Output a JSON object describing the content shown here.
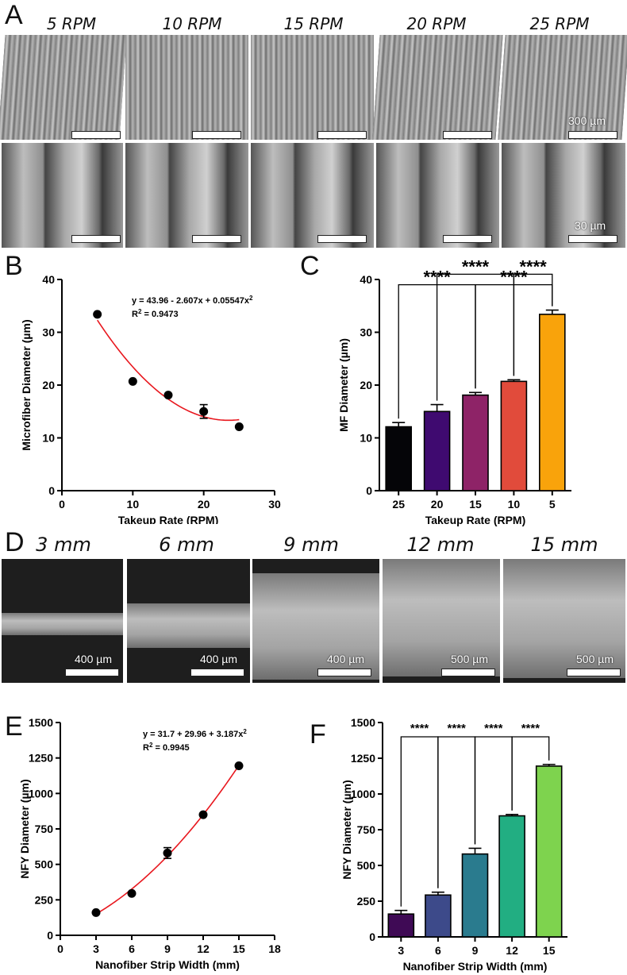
{
  "panel_letters": {
    "a": "A",
    "b": "B",
    "c": "C",
    "d": "D",
    "e": "E",
    "f": "F"
  },
  "panel_a": {
    "rpm_labels": [
      "5 RPM",
      "10 RPM",
      "15 RPM",
      "20 RPM",
      "25 RPM"
    ],
    "scale_top": "300 µm",
    "scale_bottom": "30 µm"
  },
  "panel_d": {
    "width_labels": [
      "3 mm",
      "6 mm",
      "9 mm",
      "12 mm",
      "15 mm"
    ],
    "scale_labels": [
      "400 µm",
      "400 µm",
      "400 µm",
      "500 µm",
      "500 µm"
    ]
  },
  "chart_data": [
    {
      "panel": "B",
      "type": "scatter",
      "x": [
        5,
        10,
        15,
        20,
        25
      ],
      "y": [
        33.4,
        20.7,
        18.1,
        15.0,
        12.1
      ],
      "errors": [
        0,
        0,
        0,
        1.3,
        0
      ],
      "fit": {
        "a": 43.96,
        "b": -2.607,
        "c": 0.05547,
        "x_range": [
          5,
          25
        ]
      },
      "equation": "y = 43.96 - 2.607x + 0.05547x",
      "r2_label": "R",
      "r2_value": " = 0.9473",
      "xlabel": "Takeup Rate (RPM)",
      "ylabel": "Microfiber Diameter (µm)",
      "xlim": [
        0,
        30
      ],
      "ylim": [
        0,
        40
      ],
      "xticks": [
        0,
        10,
        20,
        30
      ],
      "yticks": [
        0,
        10,
        20,
        30,
        40
      ],
      "colors": {
        "fit": "#e8171e",
        "points": "#000000"
      }
    },
    {
      "panel": "C",
      "type": "bar",
      "categories": [
        "25",
        "20",
        "15",
        "10",
        "5"
      ],
      "values": [
        12.1,
        15.0,
        18.1,
        20.7,
        33.4
      ],
      "errors": [
        0.8,
        1.3,
        0.5,
        0.3,
        0.8
      ],
      "colors": [
        "#050508",
        "#3f0a70",
        "#8e2367",
        "#e14b3b",
        "#f9a30b"
      ],
      "xlabel": "Takeup Rate (RPM)",
      "ylabel": "MF Diameter (µm)",
      "ylim": [
        0,
        40
      ],
      "yticks": [
        0,
        10,
        20,
        30,
        40
      ],
      "significance": [
        {
          "from": 0,
          "to": 2,
          "label": "****",
          "height": 39
        },
        {
          "from": 1,
          "to": 3,
          "label": "****",
          "height": 41
        },
        {
          "from": 2,
          "to": 4,
          "label": "****",
          "height": 39
        },
        {
          "from": 3,
          "to": 4,
          "label": "****",
          "height": 41
        }
      ]
    },
    {
      "panel": "E",
      "type": "scatter",
      "x": [
        3,
        6,
        9,
        12,
        15
      ],
      "y": [
        160,
        295,
        580,
        850,
        1195
      ],
      "errors": [
        0,
        0,
        38,
        0,
        0
      ],
      "fit": {
        "a": 31.7,
        "b": 29.96,
        "c": 3.187,
        "x_range": [
          3,
          15
        ]
      },
      "equation": "y = 31.7 + 29.96 + 3.187x",
      "r2_label": "R",
      "r2_value": " = 0.9945",
      "xlabel": "Nanofiber Strip Width (mm)",
      "ylabel": "NFY Diameter (µm)",
      "xlim": [
        0,
        18
      ],
      "ylim": [
        0,
        1500
      ],
      "xticks": [
        0,
        3,
        6,
        9,
        12,
        15,
        18
      ],
      "yticks": [
        0,
        250,
        500,
        750,
        1000,
        1250,
        1500
      ],
      "colors": {
        "fit": "#e8171e",
        "points": "#000000"
      }
    },
    {
      "panel": "F",
      "type": "bar",
      "categories": [
        "3",
        "6",
        "9",
        "12",
        "15"
      ],
      "values": [
        160,
        293,
        580,
        847,
        1195
      ],
      "errors": [
        25,
        20,
        40,
        10,
        12
      ],
      "colors": [
        "#3f0a55",
        "#3d4a8a",
        "#2a7b8e",
        "#22ae82",
        "#7ed34e"
      ],
      "xlabel": "Nanofiber Strip Width (mm)",
      "ylabel": "NFY Diameter (µm)",
      "ylim": [
        0,
        1500
      ],
      "yticks": [
        0,
        250,
        500,
        750,
        1000,
        1250,
        1500
      ],
      "significance": [
        {
          "from": 0,
          "to": 1,
          "label": "****",
          "height": 1400
        },
        {
          "from": 1,
          "to": 2,
          "label": "****",
          "height": 1400
        },
        {
          "from": 2,
          "to": 3,
          "label": "****",
          "height": 1400
        },
        {
          "from": 3,
          "to": 4,
          "label": "****",
          "height": 1400
        }
      ]
    }
  ]
}
